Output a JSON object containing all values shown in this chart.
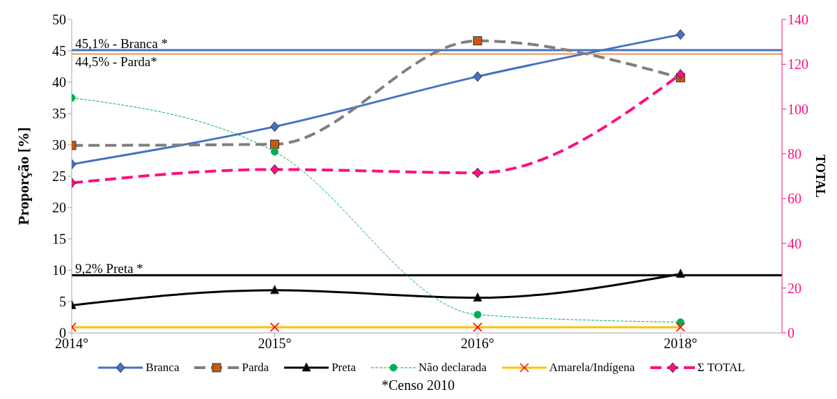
{
  "chart_data": {
    "type": "line",
    "ylabel": "Proporção [%]",
    "y2label": "TOTAL",
    "categories": [
      "2014°",
      "2015°",
      "2016°",
      "2018°"
    ],
    "series": [
      {
        "name": "Branca",
        "color": "#4472c4",
        "marker": "diamond",
        "line_style": "solid",
        "values": [
          26.9,
          32.9,
          40.9,
          47.6
        ]
      },
      {
        "name": "Parda",
        "color": "#7f7f7f",
        "marker": "square",
        "line_style": "dashed",
        "values": [
          29.9,
          30.1,
          46.6,
          40.7
        ]
      },
      {
        "name": "Preta",
        "color": "#000000",
        "marker": "triangle",
        "line_style": "solid",
        "values": [
          4.4,
          6.8,
          5.6,
          9.4
        ]
      },
      {
        "name": "Não declarada",
        "color": "#00b050",
        "marker": "circle",
        "line_style": "dashed",
        "values": [
          37.5,
          28.9,
          2.9,
          1.7
        ]
      },
      {
        "name": "Amarela/Indígena",
        "color": "#ffc000",
        "marker": "cross",
        "line_style": "solid",
        "values": [
          0.9,
          0.9,
          0.9,
          0.9
        ]
      },
      {
        "name": "Σ TOTAL",
        "color": "#ff0f80",
        "marker": "diamond",
        "line_style": "dashed",
        "axis": "y2",
        "values": [
          67,
          73,
          71.5,
          115.5
        ]
      }
    ],
    "ylim": [
      0,
      50
    ],
    "yticks": [
      0,
      5,
      10,
      15,
      20,
      25,
      30,
      35,
      40,
      45,
      50
    ],
    "y2lim": [
      0,
      140
    ],
    "y2ticks": [
      0,
      20,
      40,
      60,
      80,
      100,
      120,
      140
    ],
    "ref_lines": [
      {
        "axis": "y",
        "value": 45.1,
        "label": "45,1% - Branca *",
        "color": "#4472c4"
      },
      {
        "axis": "y",
        "value": 44.5,
        "label": "44,5% - Parda*",
        "color": "#f4b183"
      },
      {
        "axis": "y",
        "value": 9.2,
        "label": "9,2%  Preta *",
        "color": "#000000"
      }
    ],
    "annotations": [
      "*Censo 2010"
    ],
    "grid": false,
    "legend": "bottom"
  }
}
